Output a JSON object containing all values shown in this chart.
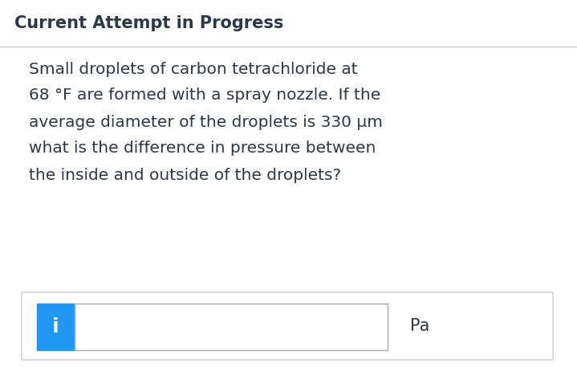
{
  "title": "Current Attempt in Progress",
  "title_fontsize": 15,
  "title_fontweight": "bold",
  "title_color": "#2d3748",
  "body_lines": [
    "Small droplets of carbon tetrachloride at",
    "68 °F are formed with a spray nozzle. If the",
    "average diameter of the droplets is 330 μm",
    "what is the difference in pressure between",
    "the inside and outside of the droplets?"
  ],
  "body_fontsize": 14.5,
  "body_color": "#2d3748",
  "unit_label": "Pa",
  "unit_fontsize": 15,
  "icon_text": "i",
  "icon_bg_color": "#2196F3",
  "icon_text_color": "#ffffff",
  "icon_fontsize": 15,
  "bg_color": "#ffffff",
  "content_bg_color": "#ffffff",
  "divider_color": "#cccccc",
  "input_outer_border": "#cccccc",
  "input_field_border": "#aaaaaa"
}
